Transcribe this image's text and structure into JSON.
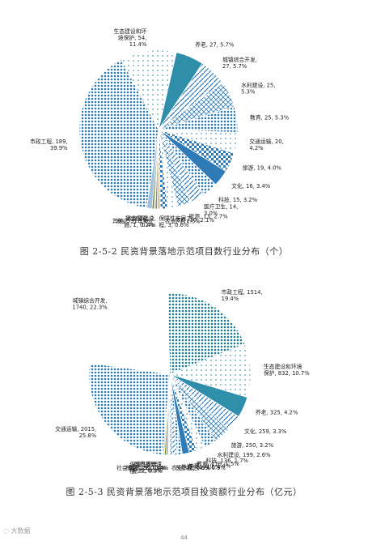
{
  "chart_data": [
    {
      "type": "pie",
      "title": "",
      "caption": "图 2-5-2   民资背景落地示范项目数行业分布（个）",
      "series": [
        {
          "name": "市政工程",
          "value": 189,
          "label": "市政工程, 189,\n39.9%",
          "color": "#2f7bb8",
          "pattern": "dots-dense"
        },
        {
          "name": "生态建设和环境保护",
          "value": 54,
          "label": "生态建设和环\n境保护, 54,\n11.4%",
          "color": "#1f7f92",
          "pattern": "dots-sparse"
        },
        {
          "name": "养老",
          "value": 27,
          "label": "养老, 27, 5.7%",
          "color": "#2f8faa",
          "pattern": "solid"
        },
        {
          "name": "城镇综合开发",
          "value": 27,
          "label": "城镇综合开发,\n27, 5.7%",
          "color": "#2f7bb8",
          "pattern": "lines"
        },
        {
          "name": "水利建设",
          "value": 25,
          "label": "水利建设, 25,\n5.3%",
          "color": "#2f7bb8",
          "pattern": "cross"
        },
        {
          "name": "教育",
          "value": 25,
          "label": "教育, 25, 5.3%",
          "color": "#2f7bb8",
          "pattern": "dots-dense"
        },
        {
          "name": "交通运输",
          "value": 20,
          "label": "交通运输, 20,\n4.2%",
          "color": "#2f7bb8",
          "pattern": "dots-sparse"
        },
        {
          "name": "旅游",
          "value": 19,
          "label": "旅游, 19, 4.0%",
          "color": "#2f7bb8",
          "pattern": "checker"
        },
        {
          "name": "文化",
          "value": 16,
          "label": "文化, 16, 3.4%",
          "color": "#2f7bb8",
          "pattern": "solid"
        },
        {
          "name": "科技",
          "value": 15,
          "label": "科技, 15, 3.2%",
          "color": "#2f7bb8",
          "pattern": "dots-dense"
        },
        {
          "name": "医疗卫生",
          "value": 14,
          "label": "医疗卫生, 14,\n3.0%",
          "color": "#2f7bb8",
          "pattern": "lines"
        },
        {
          "name": "能源",
          "value": 13,
          "label": "能源, 13, 2.7%",
          "color": "#2f7bb8",
          "pattern": "cross"
        },
        {
          "name": "体育",
          "value": 10,
          "label": "体育, 10, 2.1%",
          "color": "#2f7bb8",
          "pattern": "dots-sparse"
        },
        {
          "name": "农业",
          "value": 7,
          "label": "农业, 7, 1.5%",
          "color": "#2f7bb8",
          "pattern": "checker"
        },
        {
          "name": "保障性安居工程",
          "value": 3,
          "label": "保障性安居工\n程, 3, 0.6%",
          "color": "#d9c9a0",
          "pattern": "solid"
        },
        {
          "name": "社会保障",
          "value": 2,
          "label": "社会保障, 2,\n0.4%",
          "color": "#8a8a8a",
          "pattern": "solid"
        },
        {
          "name": "政府基础设施",
          "value": 1,
          "label": "政府基础设\n施, 1, 0.2%",
          "color": "#c2a24a",
          "pattern": "solid"
        },
        {
          "name": "林业",
          "value": 2,
          "label": "林业, 2, 0.4%",
          "color": "#6a8a3a",
          "pattern": "solid"
        },
        {
          "name": "其他",
          "value": 5,
          "label": "其他, 5, 1.1%",
          "color": "#a0c0e0",
          "pattern": "solid"
        }
      ]
    },
    {
      "type": "pie",
      "title": "",
      "caption": "图 2-5-3   民资背景落地示范项目投资额行业分布（亿元）",
      "series": [
        {
          "name": "市政工程",
          "value": 1514,
          "label": "市政工程, 1514,\n19.4%",
          "color": "#1f7f92",
          "pattern": "dots-dense"
        },
        {
          "name": "生态建设和环境保护",
          "value": 832,
          "label": "生态建设和环境\n保护, 832, 10.7%",
          "color": "#1f7f92",
          "pattern": "dots-sparse"
        },
        {
          "name": "养老",
          "value": 325,
          "label": "养老, 325, 4.2%",
          "color": "#2f8faa",
          "pattern": "solid"
        },
        {
          "name": "文化",
          "value": 259,
          "label": "文化, 259, 3.3%",
          "color": "#2f7bb8",
          "pattern": "lines"
        },
        {
          "name": "旅游",
          "value": 250,
          "label": "旅游, 250, 3.2%",
          "color": "#2f7bb8",
          "pattern": "cross"
        },
        {
          "name": "水利建设",
          "value": 199,
          "label": "水利建设, 199, 2.6%",
          "color": "#2f7bb8",
          "pattern": "dots-dense"
        },
        {
          "name": "科技",
          "value": 136,
          "label": "科技, 136, 1.7%",
          "color": "#2f7bb8",
          "pattern": "dots-sparse"
        },
        {
          "name": "教育",
          "value": 119,
          "label": "教育, 119, 1.5%",
          "color": "#2f7bb8",
          "pattern": "checker"
        },
        {
          "name": "体育",
          "value": 110,
          "label": "体育, 110, 1.4%",
          "color": "#2f7bb8",
          "pattern": "solid"
        },
        {
          "name": "能源",
          "value": 81,
          "label": "能源, 81, 1.0%",
          "color": "#2f7bb8",
          "pattern": "dots-dense"
        },
        {
          "name": "医疗卫生",
          "value": 69,
          "label": "医疗卫生, 69, 0.9%",
          "color": "#2f7bb8",
          "pattern": "lines"
        },
        {
          "name": "农业",
          "value": 42,
          "label": "农业, 42, 0.5%",
          "color": "#2f7bb8",
          "pattern": "cross"
        },
        {
          "name": "其他",
          "value": 31,
          "label": "其他, 31, 0.4%",
          "color": "#2f7bb8",
          "pattern": "dots-sparse"
        },
        {
          "name": "社会保障",
          "value": 28,
          "label": "社会保障, 28, 0.4%",
          "color": "#8a8a8a",
          "pattern": "solid"
        },
        {
          "name": "林业",
          "value": 25,
          "label": "林业, 25, 0.3%",
          "color": "#6a8a3a",
          "pattern": "solid"
        },
        {
          "name": "保障性安居工程",
          "value": 22,
          "label": "保障性安居工\n程, 22, 0.3%",
          "color": "#d9c9a0",
          "pattern": "solid"
        },
        {
          "name": "政府基础设施",
          "value": 2,
          "label": "政府基础设\n施, 2, 0.0%",
          "color": "#c2a24a",
          "pattern": "solid"
        },
        {
          "name": "交通运输",
          "value": 2015,
          "label": "交通运输, 2015,\n25.8%",
          "color": "#2f7bb8",
          "pattern": "dots-dense"
        },
        {
          "name": "城镇综合开发",
          "value": 1740,
          "label": "城镇综合开发,\n1740, 22.3%",
          "color": "#ffffff",
          "pattern": "dots-sparse"
        }
      ]
    }
  ],
  "watermark": "大数据",
  "page_number": "44"
}
